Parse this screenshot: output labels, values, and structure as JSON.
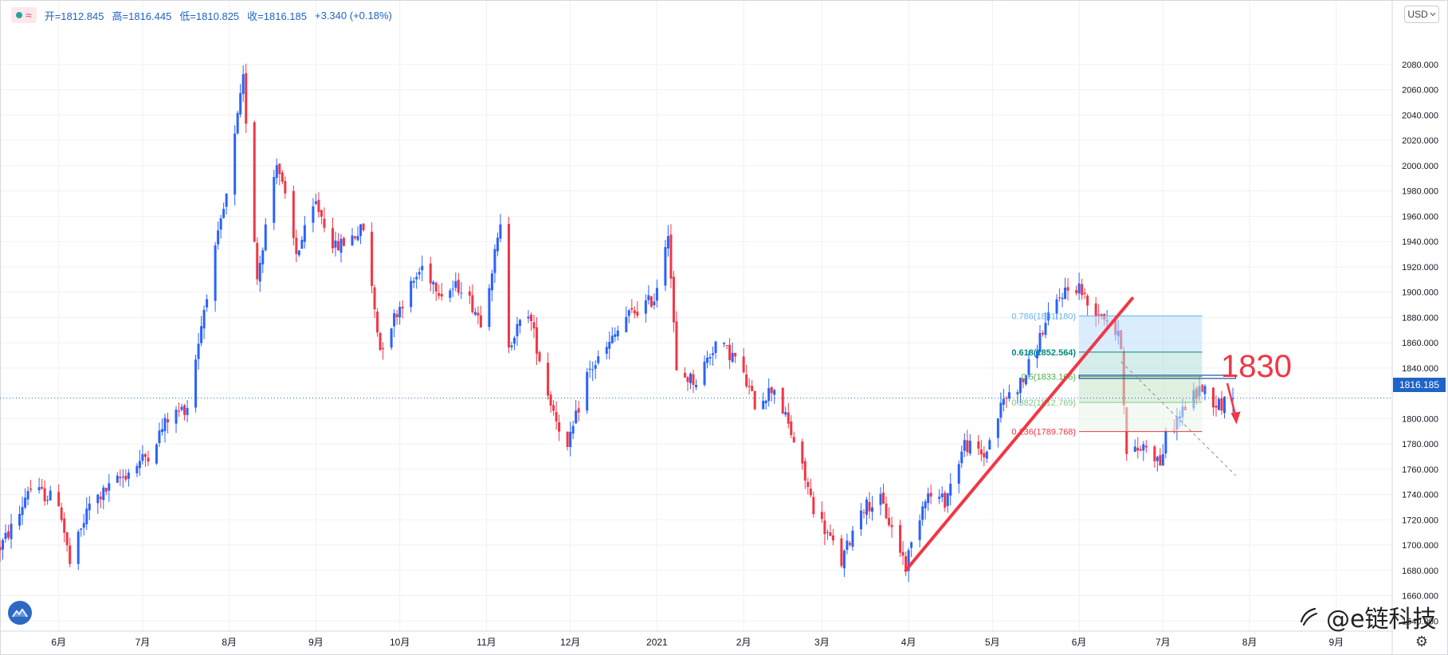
{
  "legend": {
    "open": "开=1812.845",
    "high": "高=1816.445",
    "low": "低=1810.825",
    "close": "收=1816.185",
    "change": "+3.340 (+0.18%)"
  },
  "currency_label": "USD",
  "last_price_label": "1816.185",
  "callout_label": "1830",
  "watermark": "@e链科技",
  "icons": {
    "settings": "gear-icon",
    "logo": "tradingview-logo-icon",
    "watermark_logo": "watermark-logo-icon",
    "currency_caret": "chevron-down-icon"
  },
  "colors": {
    "up": "#2962ff",
    "down": "#f23645",
    "trendline": "#f23645",
    "fib_0786": "#64b5f6",
    "fib_0618": "#00897b",
    "fib_05": "#4caf50",
    "fib_0382": "#81c784",
    "fib_0236": "#f23645",
    "current_price_line": "#1e63c6"
  },
  "chart_data": {
    "type": "candlestick",
    "y_axis": {
      "ticks": [
        1640,
        1660,
        1680,
        1700,
        1720,
        1740,
        1760,
        1780,
        1800,
        1820,
        1840,
        1860,
        1880,
        1900,
        1920,
        1940,
        1960,
        1980,
        2000,
        2020,
        2040,
        2060,
        2080
      ],
      "tick_labels": [
        "1640.000",
        "1660.000",
        "1680.000",
        "1700.000",
        "1720.000",
        "1740.000",
        "1760.000",
        "1780.000",
        "1800.000",
        "1820.000",
        "1840.000",
        "1860.000",
        "1880.000",
        "1900.000",
        "1920.000",
        "1940.000",
        "1960.000",
        "1980.000",
        "2000.000",
        "2020.000",
        "2040.000",
        "2060.000",
        "2080.000"
      ],
      "ylim": [
        1632,
        2107
      ]
    },
    "x_axis": {
      "labels": [
        "6月",
        "7月",
        "8月",
        "9月",
        "10月",
        "11月",
        "12月",
        "2021",
        "2月",
        "3月",
        "4月",
        "5月",
        "6月",
        "7月",
        "8月",
        "9月"
      ],
      "dates": [
        "2020-06-01",
        "2020-07-01",
        "2020-08-01",
        "2020-09-01",
        "2020-10-01",
        "2020-11-01",
        "2020-12-01",
        "2021-01-01",
        "2021-02-01",
        "2021-03-01",
        "2021-04-01",
        "2021-05-01",
        "2021-06-01",
        "2021-07-01",
        "2021-08-01",
        "2021-09-01"
      ],
      "xlim": [
        "2020-05-11",
        "2021-09-21"
      ]
    },
    "price_path": [
      [
        "2020-05-11",
        1698
      ],
      [
        "2020-05-18",
        1725
      ],
      [
        "2020-05-21",
        1745
      ],
      [
        "2020-06-01",
        1735
      ],
      [
        "2020-06-05",
        1685
      ],
      [
        "2020-06-12",
        1732
      ],
      [
        "2020-06-19",
        1745
      ],
      [
        "2020-06-26",
        1758
      ],
      [
        "2020-07-03",
        1772
      ],
      [
        "2020-07-10",
        1800
      ],
      [
        "2020-07-17",
        1810
      ],
      [
        "2020-07-24",
        1900
      ],
      [
        "2020-07-31",
        1975
      ],
      [
        "2020-08-06",
        2068
      ],
      [
        "2020-08-11",
        1912
      ],
      [
        "2020-08-18",
        2005
      ],
      [
        "2020-08-25",
        1930
      ],
      [
        "2020-09-01",
        1970
      ],
      [
        "2020-09-08",
        1935
      ],
      [
        "2020-09-18",
        1950
      ],
      [
        "2020-09-24",
        1855
      ],
      [
        "2020-09-30",
        1885
      ],
      [
        "2020-10-09",
        1920
      ],
      [
        "2020-10-16",
        1900
      ],
      [
        "2020-10-23",
        1905
      ],
      [
        "2020-10-30",
        1878
      ],
      [
        "2020-11-06",
        1950
      ],
      [
        "2020-11-09",
        1860
      ],
      [
        "2020-11-16",
        1885
      ],
      [
        "2020-11-23",
        1820
      ],
      [
        "2020-11-30",
        1775
      ],
      [
        "2020-12-07",
        1835
      ],
      [
        "2020-12-14",
        1855
      ],
      [
        "2020-12-21",
        1880
      ],
      [
        "2020-12-31",
        1895
      ],
      [
        "2021-01-05",
        1950
      ],
      [
        "2021-01-08",
        1835
      ],
      [
        "2021-01-15",
        1830
      ],
      [
        "2021-01-22",
        1860
      ],
      [
        "2021-01-29",
        1848
      ],
      [
        "2021-02-05",
        1812
      ],
      [
        "2021-02-12",
        1825
      ],
      [
        "2021-02-19",
        1782
      ],
      [
        "2021-02-26",
        1730
      ],
      [
        "2021-03-05",
        1700
      ],
      [
        "2021-03-08",
        1686
      ],
      [
        "2021-03-15",
        1730
      ],
      [
        "2021-03-22",
        1735
      ],
      [
        "2021-03-31",
        1685
      ],
      [
        "2021-04-07",
        1740
      ],
      [
        "2021-04-14",
        1735
      ],
      [
        "2021-04-21",
        1780
      ],
      [
        "2021-04-28",
        1770
      ],
      [
        "2021-05-05",
        1815
      ],
      [
        "2021-05-12",
        1830
      ],
      [
        "2021-05-19",
        1870
      ],
      [
        "2021-05-26",
        1900
      ],
      [
        "2021-06-01",
        1905
      ],
      [
        "2021-06-04",
        1890
      ],
      [
        "2021-06-11",
        1880
      ],
      [
        "2021-06-16",
        1860
      ],
      [
        "2021-06-18",
        1770
      ],
      [
        "2021-06-25",
        1780
      ],
      [
        "2021-06-30",
        1765
      ],
      [
        "2021-07-02",
        1785
      ],
      [
        "2021-07-09",
        1810
      ],
      [
        "2021-07-15",
        1825
      ],
      [
        "2021-07-20",
        1812
      ],
      [
        "2021-07-23",
        1812
      ],
      [
        "2021-07-26",
        1816
      ]
    ],
    "last_price": 1816.185,
    "fibonacci": [
      {
        "ratio": "0.786",
        "label": "0.786(1881.180)",
        "price": 1881.18
      },
      {
        "ratio": "0.618",
        "label": "0.618(1852.564)",
        "price": 1852.564
      },
      {
        "ratio": "0.5",
        "label": "0.5(1833.166)",
        "price": 1833.166
      },
      {
        "ratio": "0.382",
        "label": "0.382(1812.769)",
        "price": 1812.769
      },
      {
        "ratio": "0.236",
        "label": "0.236(1789.768)",
        "price": 1789.768
      }
    ],
    "fib_range": {
      "start": "2021-06-01",
      "end": "2021-07-15"
    },
    "trendline": {
      "from": [
        "2021-03-31",
        1680
      ],
      "to": [
        "2021-06-20",
        1895
      ]
    },
    "dashed_line": {
      "from": [
        "2021-06-16",
        1845
      ],
      "to": [
        "2021-07-27",
        1755
      ]
    },
    "resistance_line": {
      "price": 1833,
      "from": "2021-06-01",
      "to": "2021-07-27"
    },
    "arrow": {
      "from": [
        "2021-07-24",
        1828
      ],
      "to": [
        "2021-07-27",
        1798
      ]
    }
  }
}
